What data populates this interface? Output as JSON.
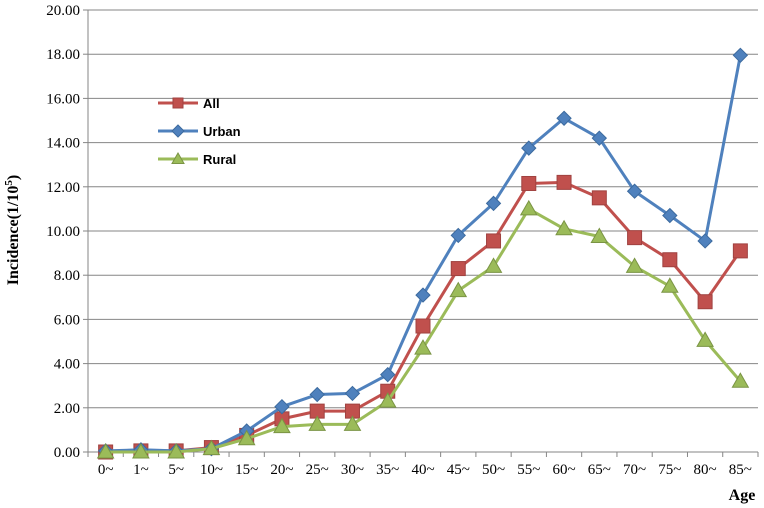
{
  "chart_data": {
    "type": "line",
    "title": "",
    "xlabel": "Age",
    "ylabel": "Incidence(1/10⁵)",
    "categories": [
      "0~",
      "1~",
      "5~",
      "10~",
      "15~",
      "20~",
      "25~",
      "30~",
      "35~",
      "40~",
      "45~",
      "50~",
      "55~",
      "60~",
      "65~",
      "70~",
      "75~",
      "80~",
      "85~"
    ],
    "ylim": [
      0,
      20
    ],
    "yticks": [
      "0.00",
      "2.00",
      "4.00",
      "6.00",
      "8.00",
      "10.00",
      "12.00",
      "14.00",
      "16.00",
      "18.00",
      "20.00"
    ],
    "grid": true,
    "legend_position": "upper-left",
    "series": [
      {
        "name": "All",
        "color": "#c0504d",
        "marker": "square",
        "values": [
          0.0,
          0.05,
          0.05,
          0.2,
          0.75,
          1.5,
          1.85,
          1.85,
          2.75,
          5.7,
          8.3,
          9.55,
          12.15,
          12.2,
          11.5,
          9.7,
          8.7,
          6.8,
          9.1
        ]
      },
      {
        "name": "Urban",
        "color": "#4f81bd",
        "marker": "diamond",
        "values": [
          0.05,
          0.1,
          0.05,
          0.15,
          0.95,
          2.05,
          2.6,
          2.65,
          3.5,
          7.1,
          9.8,
          11.25,
          13.75,
          15.1,
          14.2,
          11.8,
          10.7,
          9.55,
          17.95
        ]
      },
      {
        "name": "Rural",
        "color": "#9bbb59",
        "marker": "triangle",
        "values": [
          0.0,
          0.0,
          0.0,
          0.15,
          0.6,
          1.15,
          1.25,
          1.25,
          2.3,
          4.7,
          7.3,
          8.4,
          11.0,
          10.1,
          9.75,
          8.4,
          7.5,
          5.05,
          3.2
        ]
      }
    ]
  }
}
